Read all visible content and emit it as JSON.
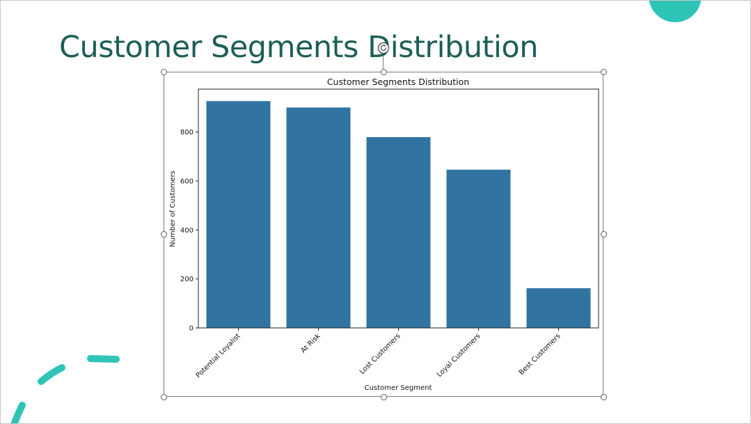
{
  "slide": {
    "title": "Customer Segments Distribution",
    "accent_color": "#2ec4b6",
    "title_color": "#1c5e57"
  },
  "chart_data": {
    "type": "bar",
    "title": "Customer Segments Distribution",
    "xlabel": "Customer Segment",
    "ylabel": "Number of Customers",
    "categories": [
      "Potential Loyalist",
      "At Risk",
      "Lost Customers",
      "Loyal Customers",
      "Best Customers"
    ],
    "values": [
      926,
      900,
      779,
      646,
      162
    ],
    "ylim": [
      0,
      975
    ],
    "yticks": [
      0,
      200,
      400,
      600,
      800
    ],
    "yticks_labels": [
      "0",
      "200",
      "400",
      "600",
      "800"
    ],
    "bar_color": "#3274a1",
    "grid": false,
    "legend": "none"
  },
  "selection": {
    "handles": [
      "top-left",
      "top-center",
      "top-right",
      "middle-left",
      "middle-right",
      "bottom-left",
      "bottom-center",
      "bottom-right"
    ],
    "rotate_icon": "rotate-icon"
  }
}
